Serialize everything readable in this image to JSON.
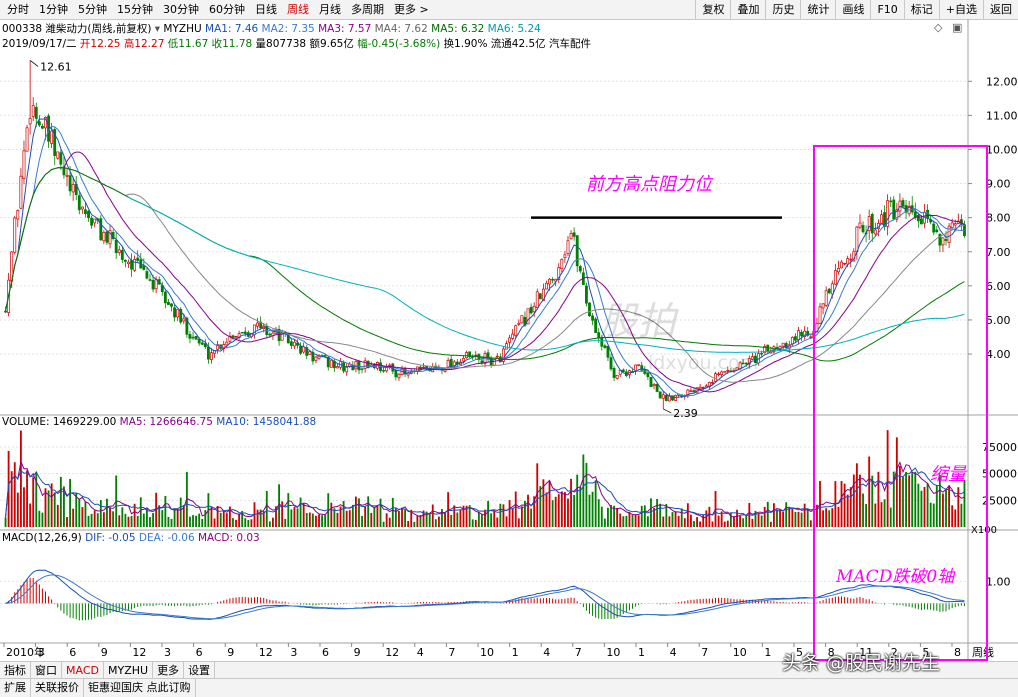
{
  "toolbar": {
    "periods": [
      "分时",
      "1分钟",
      "5分钟",
      "15分钟",
      "30分钟",
      "60分钟",
      "日线",
      "周线",
      "月线",
      "多周期",
      "更多 >"
    ],
    "active_period": "周线",
    "right_buttons": [
      "复权",
      "叠加",
      "历史",
      "统计",
      "画线",
      "F10",
      "标记",
      "+自选",
      "返回"
    ]
  },
  "header": {
    "code_name": "000338 潍柴动力(周线,前复权)",
    "indicator_name": "MYZHU",
    "ma1": "MA1: 7.46",
    "ma2": "MA2: 7.35",
    "ma3": "MA3: 7.57",
    "ma4": "MA4: 7.62",
    "ma5": "MA5: 6.32",
    "ma6": "MA6: 5.24",
    "date": "2019/09/17/二",
    "open": "开12.25",
    "high": "高12.27",
    "low": "低11.67",
    "close": "收11.78",
    "volume": "量807738",
    "amount": "额9.65亿",
    "change": "幅-0.45(-3.68%)",
    "turnover": "换1.90%",
    "float": "流通42.5亿",
    "industry": "汽车配件"
  },
  "price_axis": {
    "labels": [
      "12.00",
      "11.00",
      "10.00",
      "9.00",
      "8.00",
      "7.00",
      "6.00",
      "5.00",
      "4.00"
    ],
    "values": [
      12,
      11,
      10,
      9,
      8,
      7,
      6,
      5,
      4
    ]
  },
  "price_marks": {
    "high": "12.61",
    "low": "2.39"
  },
  "volume_panel": {
    "title": "VOLUME: 1469229.00",
    "ma5": "MA5: 1266646.75",
    "ma10": "MA10: 1458041.88",
    "axis_labels": [
      "75000",
      "50000",
      "25000"
    ],
    "axis_values": [
      75000,
      50000,
      25000
    ],
    "unit": "X100"
  },
  "macd_panel": {
    "title": "MACD(12,26,9)",
    "dif": "DIF: -0.05",
    "dea": "DEA: -0.06",
    "macd": "MACD: 0.03",
    "axis_labels": [
      "1.00"
    ]
  },
  "x_axis": {
    "labels": [
      "2010年",
      "3",
      "6",
      "9",
      "12",
      "3",
      "6",
      "9",
      "12",
      "3",
      "6",
      "9",
      "12",
      "4",
      "7",
      "10",
      "1",
      "4",
      "7",
      "10",
      "1",
      "4",
      "7",
      "10",
      "1",
      "5",
      "8",
      "11",
      "2",
      "5",
      "8"
    ],
    "right_label": "周线"
  },
  "annotations": {
    "resistance": "前方高点阻力位",
    "volume_shrink": "缩量",
    "macd_break": "MACD跌破0轴"
  },
  "colors": {
    "accent_red": "#d00000",
    "annotation": "#ff00ff",
    "up_candle": "#d00000",
    "down_candle": "#008000",
    "ma1": "#1a4fb8",
    "ma3": "#8a008a",
    "ma5": "#007a00",
    "ma6": "#00b0c0"
  },
  "bottom_tabs": [
    "指标",
    "窗口",
    "MACD",
    "MYZHU",
    "更多",
    "设置"
  ],
  "active_bottom_tab": "MACD",
  "status_bar": [
    "扩展",
    "关联报价",
    "钜惠迎国庆 点此订购"
  ],
  "watermark": {
    "source": "头条 @股民谢先生",
    "logo": "股拍",
    "url": "idxyou.com"
  },
  "chart_data": {
    "type": "candlestick",
    "title": "000338 潍柴动力(周线,前复权)",
    "ylim": [
      2.3,
      12.8
    ],
    "close_anchors": [
      [
        0,
        5.5
      ],
      [
        8,
        11.4
      ],
      [
        14,
        10.3
      ],
      [
        22,
        8.6
      ],
      [
        30,
        7.7
      ],
      [
        38,
        6.9
      ],
      [
        46,
        6.3
      ],
      [
        56,
        5.1
      ],
      [
        66,
        4.0
      ],
      [
        74,
        4.6
      ],
      [
        82,
        4.8
      ],
      [
        90,
        4.5
      ],
      [
        100,
        3.9
      ],
      [
        110,
        3.6
      ],
      [
        120,
        3.7
      ],
      [
        130,
        3.4
      ],
      [
        140,
        3.6
      ],
      [
        150,
        3.9
      ],
      [
        160,
        3.8
      ],
      [
        170,
        5.2
      ],
      [
        178,
        6.2
      ],
      [
        184,
        7.6
      ],
      [
        190,
        5.2
      ],
      [
        198,
        3.4
      ],
      [
        206,
        3.6
      ],
      [
        214,
        2.7
      ],
      [
        222,
        2.9
      ],
      [
        232,
        3.4
      ],
      [
        242,
        3.8
      ],
      [
        252,
        4.3
      ],
      [
        262,
        4.7
      ],
      [
        270,
        6.2
      ],
      [
        278,
        7.6
      ],
      [
        288,
        8.2
      ],
      [
        296,
        8.0
      ],
      [
        304,
        7.5
      ],
      [
        312,
        7.6
      ]
    ],
    "high_mark": {
      "index": 8,
      "value": 12.61
    },
    "low_mark": {
      "index": 214,
      "value": 2.39
    },
    "resistance_level": 8.0
  }
}
